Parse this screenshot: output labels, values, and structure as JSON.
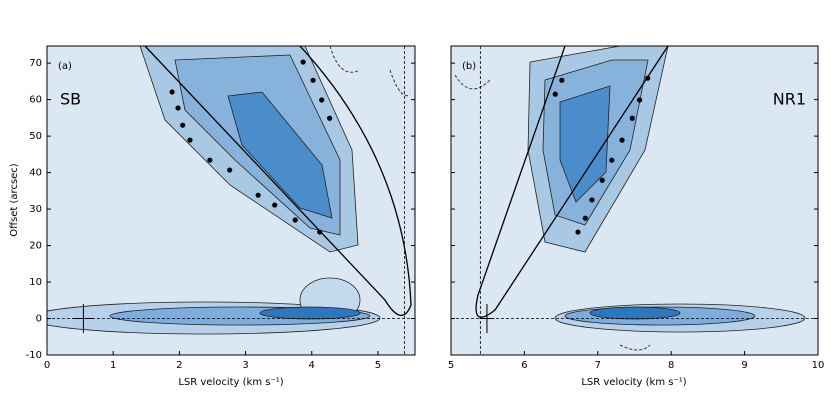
{
  "chart_data": [
    {
      "type": "scatter",
      "label": "(a)",
      "name": "SB",
      "xlabel": "LSR velocity (km s⁻¹)",
      "ylabel": "Offset (arcsec)",
      "xlim": [
        0,
        5.56
      ],
      "ylim": [
        -10,
        74.7
      ],
      "xticks": [
        0,
        1,
        2,
        3,
        4,
        5
      ],
      "yticks": [
        -10,
        0,
        10,
        20,
        30,
        40,
        50,
        60,
        70
      ],
      "ytick_labels": true,
      "x": [
        1.89,
        1.98,
        2.05,
        2.16,
        2.46,
        2.76,
        3.19,
        3.44,
        3.75,
        4.12,
        3.87,
        4.02,
        4.15,
        4.27
      ],
      "values": [
        62.1,
        57.7,
        53.0,
        48.9,
        43.4,
        40.7,
        33.8,
        31.1,
        27.0,
        23.7,
        70.3,
        65.3,
        59.9,
        54.9
      ],
      "color": "#000000",
      "vline": 5.4,
      "hline": 0,
      "errorbar": {
        "x": 0.55,
        "y": 0,
        "xerr": 0.15,
        "yerr": 4
      }
    },
    {
      "type": "scatter",
      "label": "(b)",
      "name": "NR1",
      "xlabel": "LSR velocity (km s⁻¹)",
      "xlim": [
        5,
        10
      ],
      "ylim": [
        -10,
        74.7
      ],
      "xticks": [
        5,
        6,
        7,
        8,
        9,
        10
      ],
      "yticks": [
        -10,
        0,
        10,
        20,
        30,
        40,
        50,
        60,
        70
      ],
      "ytick_labels": false,
      "x": [
        6.42,
        6.51,
        6.73,
        6.83,
        6.92,
        7.06,
        7.19,
        7.33,
        7.47,
        7.57,
        7.68
      ],
      "values": [
        61.5,
        65.3,
        23.7,
        27.5,
        32.5,
        37.9,
        43.4,
        48.9,
        54.9,
        59.9,
        65.9
      ],
      "color": "#000000",
      "vline": 5.4,
      "hline": 0,
      "errorbar": {
        "x": 5.49,
        "y": 0,
        "xerr": 0.1,
        "yerr": 4
      }
    }
  ]
}
